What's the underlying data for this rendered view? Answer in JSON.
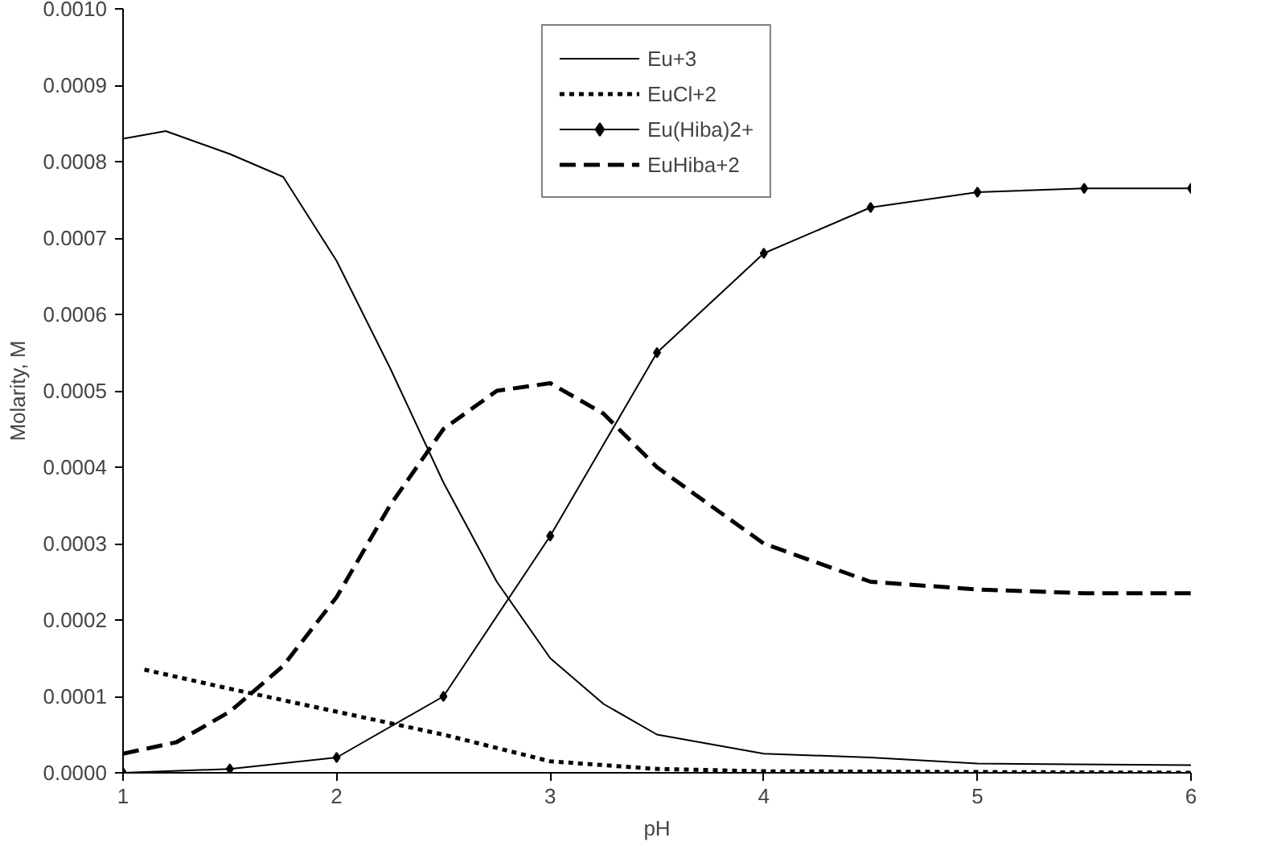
{
  "chart_data": {
    "type": "line",
    "xlabel": "pH",
    "ylabel": "Molarity, M",
    "xlim": [
      1,
      6
    ],
    "xticks": [
      1,
      2,
      3,
      4,
      5,
      6
    ],
    "ylim": [
      0,
      0.001
    ],
    "yticks": [
      {
        "value": 0,
        "label": "0.0000"
      },
      {
        "value": 0.0001,
        "label": "0.0001"
      },
      {
        "value": 0.0002,
        "label": "0.0002"
      },
      {
        "value": 0.0003,
        "label": "0.0003"
      },
      {
        "value": 0.0004,
        "label": "0.0004"
      },
      {
        "value": 0.0005,
        "label": "0.0005"
      },
      {
        "value": 0.0006,
        "label": "0.0006"
      },
      {
        "value": 0.0007,
        "label": "0.0007"
      },
      {
        "value": 0.0008,
        "label": "0.0008"
      },
      {
        "value": 0.0009,
        "label": "0.0009"
      },
      {
        "value": 0.001,
        "label": "0.0010"
      }
    ],
    "grid": false,
    "legend": "top",
    "series": [
      {
        "name": "Eu+3",
        "color": "#000000",
        "line_style": "solid",
        "marker": "none",
        "x": [
          1,
          1.2,
          1.5,
          1.75,
          2,
          2.25,
          2.5,
          2.75,
          3,
          3.25,
          3.5,
          4,
          4.5,
          5,
          6
        ],
        "values": [
          0.00083,
          0.00084,
          0.00081,
          0.00078,
          0.00067,
          0.00053,
          0.00038,
          0.00025,
          0.00015,
          9e-05,
          5e-05,
          2.5e-05,
          2e-05,
          1.2e-05,
          1e-05
        ]
      },
      {
        "name": "EuCl+2",
        "color": "#000000",
        "line_style": "dotted",
        "marker": "none",
        "x": [
          1.1,
          1.5,
          2,
          2.5,
          3,
          3.5,
          4,
          5,
          6
        ],
        "values": [
          0.000135,
          0.00011,
          8e-05,
          5e-05,
          1.5e-05,
          5e-06,
          2e-06,
          1e-06,
          0
        ]
      },
      {
        "name": "Eu(Hiba)2+",
        "color": "#000000",
        "line_style": "solid",
        "marker": "diamond",
        "x": [
          1,
          1.5,
          2,
          2.5,
          3,
          3.5,
          4,
          4.5,
          5,
          5.5,
          6
        ],
        "values": [
          0,
          5e-06,
          2e-05,
          0.0001,
          0.00031,
          0.00055,
          0.00068,
          0.00074,
          0.00076,
          0.000765,
          0.000765
        ]
      },
      {
        "name": "EuHiba+2",
        "color": "#000000",
        "line_style": "dashed",
        "marker": "none",
        "x": [
          1,
          1.25,
          1.5,
          1.75,
          2,
          2.25,
          2.5,
          2.75,
          3,
          3.25,
          3.5,
          4,
          4.5,
          5,
          5.5,
          6
        ],
        "values": [
          2.5e-05,
          4e-05,
          8e-05,
          0.00014,
          0.00023,
          0.00035,
          0.00045,
          0.0005,
          0.00051,
          0.00047,
          0.0004,
          0.0003,
          0.00025,
          0.00024,
          0.000235,
          0.000235
        ]
      }
    ]
  }
}
